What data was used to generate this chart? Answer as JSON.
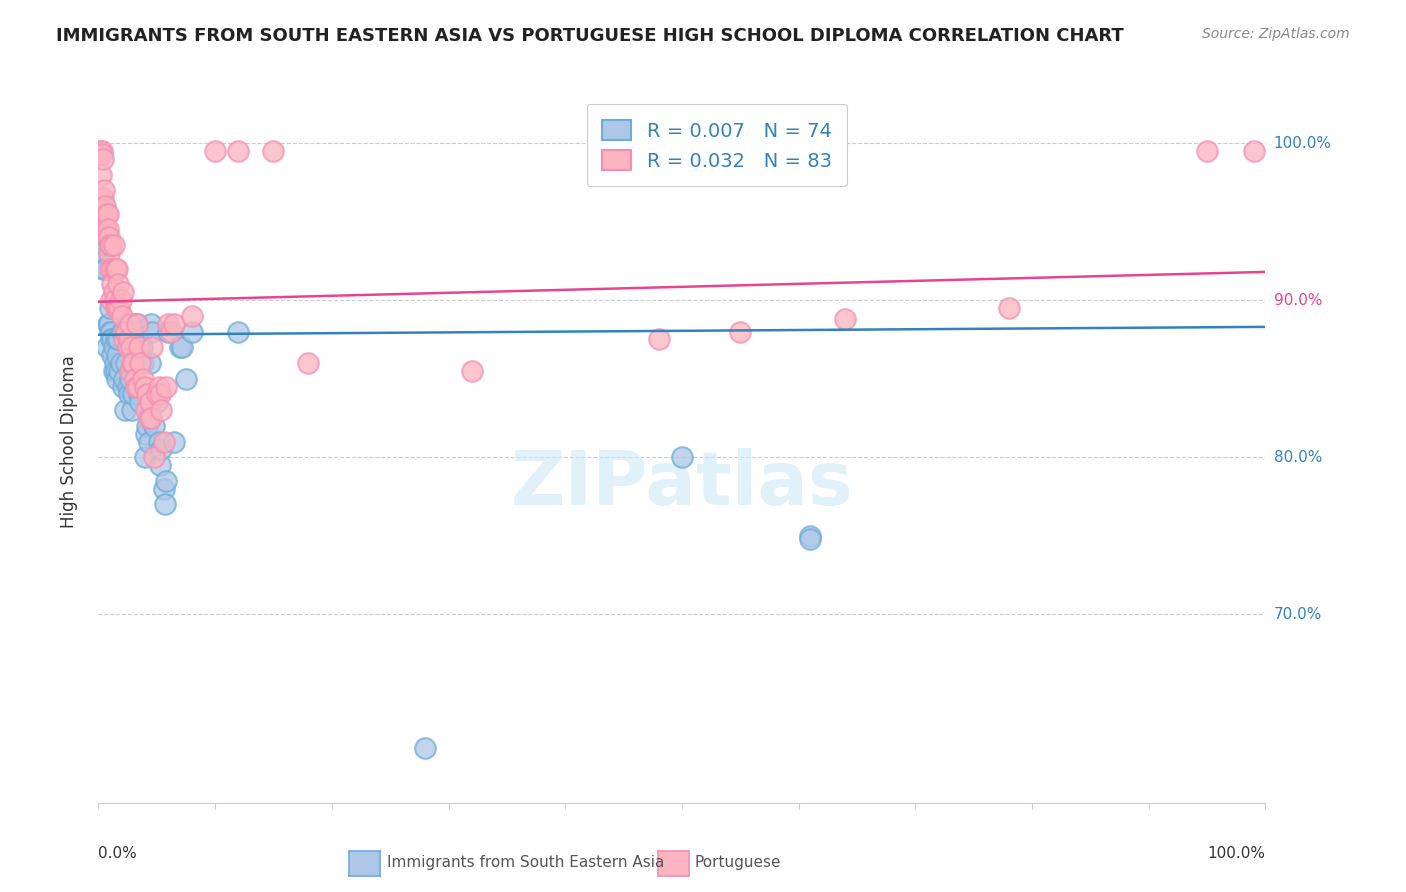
{
  "title": "IMMIGRANTS FROM SOUTH EASTERN ASIA VS PORTUGUESE HIGH SCHOOL DIPLOMA CORRELATION CHART",
  "source": "Source: ZipAtlas.com",
  "ylabel": "High School Diploma",
  "xlim": [
    0.0,
    1.0
  ],
  "ylim": [
    0.58,
    1.04
  ],
  "blue_fill": "#aec7e8",
  "blue_edge": "#6baed6",
  "pink_fill": "#fbb4c0",
  "pink_edge": "#f48fb1",
  "blue_line_color": "#3182bd",
  "pink_line_color": "#e84393",
  "watermark_color": "#cde8f7",
  "grid_color": "#cccccc",
  "ytick_vals": [
    1.0,
    0.9,
    0.8,
    0.7
  ],
  "ytick_labels": [
    "100.0%",
    "90.0%",
    "80.0%",
    "70.0%"
  ],
  "ytick_colors": [
    "#3182bd",
    "#e84393",
    "#3182bd",
    "#3182bd"
  ],
  "blue_R": 0.007,
  "blue_N": 74,
  "pink_R": 0.032,
  "pink_N": 83,
  "blue_trend": [
    0.0,
    1.0,
    0.878,
    0.883
  ],
  "pink_trend": [
    0.0,
    1.0,
    0.899,
    0.918
  ],
  "blue_scatter": [
    [
      0.002,
      0.945
    ],
    [
      0.003,
      0.94
    ],
    [
      0.003,
      0.93
    ],
    [
      0.004,
      0.95
    ],
    [
      0.004,
      0.92
    ],
    [
      0.005,
      0.945
    ],
    [
      0.005,
      0.93
    ],
    [
      0.006,
      0.935
    ],
    [
      0.006,
      0.92
    ],
    [
      0.007,
      0.94
    ],
    [
      0.007,
      0.87
    ],
    [
      0.008,
      0.885
    ],
    [
      0.009,
      0.885
    ],
    [
      0.01,
      0.88
    ],
    [
      0.01,
      0.895
    ],
    [
      0.011,
      0.88
    ],
    [
      0.011,
      0.875
    ],
    [
      0.012,
      0.875
    ],
    [
      0.012,
      0.865
    ],
    [
      0.013,
      0.87
    ],
    [
      0.013,
      0.855
    ],
    [
      0.014,
      0.86
    ],
    [
      0.015,
      0.875
    ],
    [
      0.015,
      0.855
    ],
    [
      0.016,
      0.865
    ],
    [
      0.016,
      0.85
    ],
    [
      0.017,
      0.875
    ],
    [
      0.018,
      0.855
    ],
    [
      0.019,
      0.86
    ],
    [
      0.02,
      0.88
    ],
    [
      0.021,
      0.845
    ],
    [
      0.022,
      0.85
    ],
    [
      0.023,
      0.83
    ],
    [
      0.024,
      0.86
    ],
    [
      0.025,
      0.845
    ],
    [
      0.026,
      0.84
    ],
    [
      0.027,
      0.85
    ],
    [
      0.028,
      0.87
    ],
    [
      0.029,
      0.83
    ],
    [
      0.03,
      0.84
    ],
    [
      0.031,
      0.885
    ],
    [
      0.032,
      0.88
    ],
    [
      0.033,
      0.885
    ],
    [
      0.034,
      0.88
    ],
    [
      0.035,
      0.84
    ],
    [
      0.036,
      0.835
    ],
    [
      0.037,
      0.87
    ],
    [
      0.038,
      0.86
    ],
    [
      0.04,
      0.8
    ],
    [
      0.041,
      0.815
    ],
    [
      0.042,
      0.82
    ],
    [
      0.043,
      0.81
    ],
    [
      0.044,
      0.86
    ],
    [
      0.045,
      0.885
    ],
    [
      0.046,
      0.88
    ],
    [
      0.048,
      0.82
    ],
    [
      0.05,
      0.835
    ],
    [
      0.052,
      0.81
    ],
    [
      0.053,
      0.795
    ],
    [
      0.054,
      0.805
    ],
    [
      0.056,
      0.78
    ],
    [
      0.057,
      0.77
    ],
    [
      0.058,
      0.785
    ],
    [
      0.06,
      0.88
    ],
    [
      0.065,
      0.81
    ],
    [
      0.07,
      0.87
    ],
    [
      0.072,
      0.87
    ],
    [
      0.075,
      0.85
    ],
    [
      0.08,
      0.88
    ],
    [
      0.12,
      0.88
    ],
    [
      0.28,
      0.615
    ],
    [
      0.5,
      0.8
    ],
    [
      0.61,
      0.75
    ],
    [
      0.61,
      0.748
    ]
  ],
  "pink_scatter": [
    [
      0.001,
      0.96
    ],
    [
      0.001,
      0.995
    ],
    [
      0.002,
      0.98
    ],
    [
      0.002,
      0.965
    ],
    [
      0.003,
      0.995
    ],
    [
      0.003,
      0.993
    ],
    [
      0.004,
      0.99
    ],
    [
      0.004,
      0.965
    ],
    [
      0.005,
      0.97
    ],
    [
      0.005,
      0.955
    ],
    [
      0.006,
      0.96
    ],
    [
      0.006,
      0.945
    ],
    [
      0.007,
      0.955
    ],
    [
      0.007,
      0.94
    ],
    [
      0.008,
      0.955
    ],
    [
      0.008,
      0.945
    ],
    [
      0.009,
      0.94
    ],
    [
      0.009,
      0.93
    ],
    [
      0.01,
      0.935
    ],
    [
      0.01,
      0.92
    ],
    [
      0.011,
      0.935
    ],
    [
      0.011,
      0.9
    ],
    [
      0.012,
      0.92
    ],
    [
      0.012,
      0.91
    ],
    [
      0.013,
      0.935
    ],
    [
      0.013,
      0.905
    ],
    [
      0.014,
      0.92
    ],
    [
      0.014,
      0.9
    ],
    [
      0.015,
      0.92
    ],
    [
      0.015,
      0.895
    ],
    [
      0.016,
      0.92
    ],
    [
      0.016,
      0.895
    ],
    [
      0.017,
      0.91
    ],
    [
      0.018,
      0.895
    ],
    [
      0.019,
      0.9
    ],
    [
      0.02,
      0.89
    ],
    [
      0.021,
      0.905
    ],
    [
      0.022,
      0.875
    ],
    [
      0.023,
      0.88
    ],
    [
      0.024,
      0.88
    ],
    [
      0.025,
      0.87
    ],
    [
      0.026,
      0.875
    ],
    [
      0.027,
      0.885
    ],
    [
      0.027,
      0.855
    ],
    [
      0.028,
      0.87
    ],
    [
      0.029,
      0.86
    ],
    [
      0.03,
      0.86
    ],
    [
      0.031,
      0.85
    ],
    [
      0.032,
      0.845
    ],
    [
      0.033,
      0.885
    ],
    [
      0.034,
      0.845
    ],
    [
      0.035,
      0.87
    ],
    [
      0.036,
      0.86
    ],
    [
      0.038,
      0.85
    ],
    [
      0.04,
      0.845
    ],
    [
      0.041,
      0.83
    ],
    [
      0.042,
      0.84
    ],
    [
      0.043,
      0.825
    ],
    [
      0.044,
      0.835
    ],
    [
      0.045,
      0.825
    ],
    [
      0.046,
      0.87
    ],
    [
      0.048,
      0.8
    ],
    [
      0.05,
      0.84
    ],
    [
      0.052,
      0.845
    ],
    [
      0.053,
      0.84
    ],
    [
      0.054,
      0.83
    ],
    [
      0.056,
      0.81
    ],
    [
      0.058,
      0.845
    ],
    [
      0.06,
      0.885
    ],
    [
      0.062,
      0.88
    ],
    [
      0.065,
      0.885
    ],
    [
      0.08,
      0.89
    ],
    [
      0.1,
      0.995
    ],
    [
      0.12,
      0.995
    ],
    [
      0.15,
      0.995
    ],
    [
      0.18,
      0.86
    ],
    [
      0.32,
      0.855
    ],
    [
      0.48,
      0.875
    ],
    [
      0.55,
      0.88
    ],
    [
      0.64,
      0.888
    ],
    [
      0.78,
      0.895
    ],
    [
      0.95,
      0.995
    ],
    [
      0.99,
      0.995
    ]
  ]
}
